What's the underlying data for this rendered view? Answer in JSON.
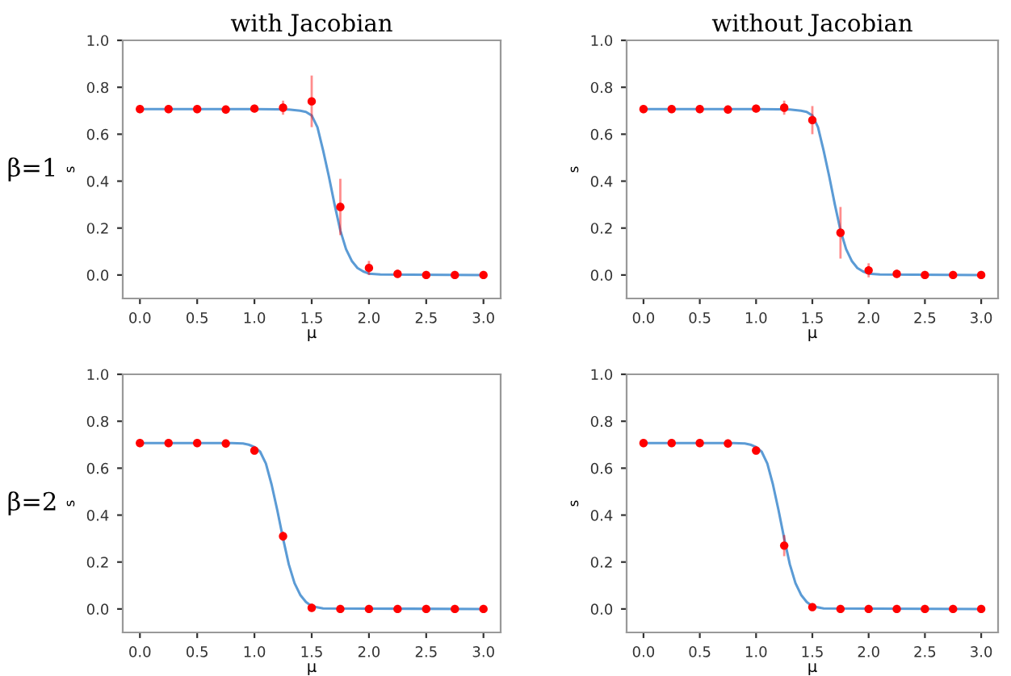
{
  "chart_data": [
    {
      "type": "line",
      "title": "with Jacobian",
      "xlabel": "μ",
      "ylabel": "s",
      "annotations": [
        "β=1"
      ],
      "xlim": [
        -0.15,
        3.15
      ],
      "ylim": [
        -0.1,
        1.0
      ],
      "xticks": [
        {
          "value": 0,
          "label": "0.0"
        },
        {
          "value": 0.5,
          "label": "0.5"
        },
        {
          "value": 1,
          "label": "1.0"
        },
        {
          "value": 1.5,
          "label": "1.5"
        },
        {
          "value": 2,
          "label": "2.0"
        },
        {
          "value": 2.5,
          "label": "2.5"
        },
        {
          "value": 3,
          "label": "3.0"
        }
      ],
      "yticks": [
        {
          "value": 0,
          "label": "0.0"
        },
        {
          "value": 0.2,
          "label": "0.2"
        },
        {
          "value": 0.4,
          "label": "0.4"
        },
        {
          "value": 0.6,
          "label": "0.6"
        },
        {
          "value": 0.8,
          "label": "0.8"
        },
        {
          "value": 1,
          "label": "1.0"
        }
      ],
      "grid": false,
      "series": [
        {
          "color": "#5b9bd5",
          "x": [
            0,
            1.0,
            1.2,
            1.3,
            1.4,
            1.45,
            1.5,
            1.55,
            1.6,
            1.65,
            1.7,
            1.75,
            1.8,
            1.85,
            1.9,
            1.95,
            2.0,
            2.1,
            3.0
          ],
          "values": [
            0.707,
            0.707,
            0.706,
            0.705,
            0.7,
            0.695,
            0.68,
            0.63,
            0.53,
            0.42,
            0.3,
            0.19,
            0.11,
            0.06,
            0.03,
            0.015,
            0.006,
            0.002,
            0.0
          ]
        },
        {
          "type": "scatter",
          "marker": "circle",
          "color": "#ff0000",
          "x": [
            0,
            0.25,
            0.5,
            0.75,
            1.0,
            1.25,
            1.5,
            1.75,
            2.0,
            2.25,
            2.5,
            2.75,
            3.0
          ],
          "values": [
            0.707,
            0.707,
            0.707,
            0.705,
            0.709,
            0.713,
            0.74,
            0.29,
            0.03,
            0.005,
            0.0,
            0.0,
            0.0
          ],
          "errors": [
            null,
            null,
            null,
            null,
            null,
            0.03,
            0.11,
            0.12,
            0.03,
            null,
            null,
            null,
            null
          ]
        }
      ]
    },
    {
      "type": "line",
      "title": "without Jacobian",
      "xlabel": "μ",
      "ylabel": "s",
      "xlim": [
        -0.15,
        3.15
      ],
      "ylim": [
        -0.1,
        1.0
      ],
      "xticks": [
        {
          "value": 0,
          "label": "0.0"
        },
        {
          "value": 0.5,
          "label": "0.5"
        },
        {
          "value": 1,
          "label": "1.0"
        },
        {
          "value": 1.5,
          "label": "1.5"
        },
        {
          "value": 2,
          "label": "2.0"
        },
        {
          "value": 2.5,
          "label": "2.5"
        },
        {
          "value": 3,
          "label": "3.0"
        }
      ],
      "yticks": [
        {
          "value": 0,
          "label": "0.0"
        },
        {
          "value": 0.2,
          "label": "0.2"
        },
        {
          "value": 0.4,
          "label": "0.4"
        },
        {
          "value": 0.6,
          "label": "0.6"
        },
        {
          "value": 0.8,
          "label": "0.8"
        },
        {
          "value": 1,
          "label": "1.0"
        }
      ],
      "grid": false,
      "series": [
        {
          "color": "#5b9bd5",
          "x": [
            0,
            1.0,
            1.2,
            1.3,
            1.4,
            1.45,
            1.5,
            1.55,
            1.6,
            1.65,
            1.7,
            1.75,
            1.8,
            1.85,
            1.9,
            1.95,
            2.0,
            2.1,
            3.0
          ],
          "values": [
            0.707,
            0.707,
            0.706,
            0.705,
            0.7,
            0.695,
            0.68,
            0.63,
            0.53,
            0.42,
            0.3,
            0.19,
            0.11,
            0.06,
            0.03,
            0.015,
            0.006,
            0.002,
            0.0
          ]
        },
        {
          "type": "scatter",
          "marker": "circle",
          "color": "#ff0000",
          "x": [
            0,
            0.25,
            0.5,
            0.75,
            1.0,
            1.25,
            1.5,
            1.75,
            2.0,
            2.25,
            2.5,
            2.75,
            3.0
          ],
          "values": [
            0.707,
            0.707,
            0.707,
            0.705,
            0.709,
            0.713,
            0.66,
            0.18,
            0.02,
            0.005,
            0.0,
            0.0,
            0.0
          ],
          "errors": [
            null,
            null,
            null,
            null,
            null,
            0.03,
            0.06,
            0.11,
            0.03,
            null,
            null,
            null,
            null
          ]
        }
      ]
    },
    {
      "type": "line",
      "xlabel": "μ",
      "ylabel": "s",
      "annotations": [
        "β=2"
      ],
      "xlim": [
        -0.15,
        3.15
      ],
      "ylim": [
        -0.1,
        1.0
      ],
      "xticks": [
        {
          "value": 0,
          "label": "0.0"
        },
        {
          "value": 0.5,
          "label": "0.5"
        },
        {
          "value": 1,
          "label": "1.0"
        },
        {
          "value": 1.5,
          "label": "1.5"
        },
        {
          "value": 2,
          "label": "2.0"
        },
        {
          "value": 2.5,
          "label": "2.5"
        },
        {
          "value": 3,
          "label": "3.0"
        }
      ],
      "yticks": [
        {
          "value": 0,
          "label": "0.0"
        },
        {
          "value": 0.2,
          "label": "0.2"
        },
        {
          "value": 0.4,
          "label": "0.4"
        },
        {
          "value": 0.6,
          "label": "0.6"
        },
        {
          "value": 0.8,
          "label": "0.8"
        },
        {
          "value": 1,
          "label": "1.0"
        }
      ],
      "grid": false,
      "series": [
        {
          "color": "#5b9bd5",
          "x": [
            0,
            0.8,
            0.9,
            0.95,
            1.0,
            1.05,
            1.1,
            1.15,
            1.2,
            1.25,
            1.3,
            1.35,
            1.4,
            1.45,
            1.5,
            1.6,
            3.0
          ],
          "values": [
            0.707,
            0.707,
            0.705,
            0.7,
            0.69,
            0.67,
            0.62,
            0.53,
            0.42,
            0.3,
            0.19,
            0.11,
            0.06,
            0.03,
            0.012,
            0.002,
            0.0
          ]
        },
        {
          "type": "scatter",
          "marker": "circle",
          "color": "#ff0000",
          "x": [
            0,
            0.25,
            0.5,
            0.75,
            1.0,
            1.25,
            1.5,
            1.75,
            2.0,
            2.25,
            2.5,
            2.75,
            3.0
          ],
          "values": [
            0.707,
            0.707,
            0.707,
            0.705,
            0.675,
            0.31,
            0.005,
            0.0,
            0.0,
            0.0,
            0.0,
            0.0,
            0.0
          ],
          "errors": [
            null,
            null,
            null,
            null,
            0.015,
            0.02,
            null,
            null,
            null,
            null,
            null,
            null,
            null
          ]
        }
      ]
    },
    {
      "type": "line",
      "xlabel": "μ",
      "ylabel": "s",
      "xlim": [
        -0.15,
        3.15
      ],
      "ylim": [
        -0.1,
        1.0
      ],
      "xticks": [
        {
          "value": 0,
          "label": "0.0"
        },
        {
          "value": 0.5,
          "label": "0.5"
        },
        {
          "value": 1,
          "label": "1.0"
        },
        {
          "value": 1.5,
          "label": "1.5"
        },
        {
          "value": 2,
          "label": "2.0"
        },
        {
          "value": 2.5,
          "label": "2.5"
        },
        {
          "value": 3,
          "label": "3.0"
        }
      ],
      "yticks": [
        {
          "value": 0,
          "label": "0.0"
        },
        {
          "value": 0.2,
          "label": "0.2"
        },
        {
          "value": 0.4,
          "label": "0.4"
        },
        {
          "value": 0.6,
          "label": "0.6"
        },
        {
          "value": 0.8,
          "label": "0.8"
        },
        {
          "value": 1,
          "label": "1.0"
        }
      ],
      "grid": false,
      "series": [
        {
          "color": "#5b9bd5",
          "x": [
            0,
            0.8,
            0.9,
            0.95,
            1.0,
            1.05,
            1.1,
            1.15,
            1.2,
            1.25,
            1.3,
            1.35,
            1.4,
            1.45,
            1.5,
            1.6,
            3.0
          ],
          "values": [
            0.707,
            0.707,
            0.705,
            0.7,
            0.69,
            0.67,
            0.62,
            0.53,
            0.42,
            0.3,
            0.19,
            0.11,
            0.06,
            0.03,
            0.012,
            0.002,
            0.0
          ]
        },
        {
          "type": "scatter",
          "marker": "circle",
          "color": "#ff0000",
          "x": [
            0,
            0.25,
            0.5,
            0.75,
            1.0,
            1.25,
            1.5,
            1.75,
            2.0,
            2.25,
            2.5,
            2.75,
            3.0
          ],
          "values": [
            0.707,
            0.707,
            0.707,
            0.705,
            0.675,
            0.27,
            0.008,
            0.0,
            0.0,
            0.0,
            0.0,
            0.0,
            0.0
          ],
          "errors": [
            null,
            null,
            null,
            null,
            0.015,
            0.045,
            null,
            null,
            null,
            null,
            null,
            null,
            null
          ]
        }
      ]
    }
  ]
}
